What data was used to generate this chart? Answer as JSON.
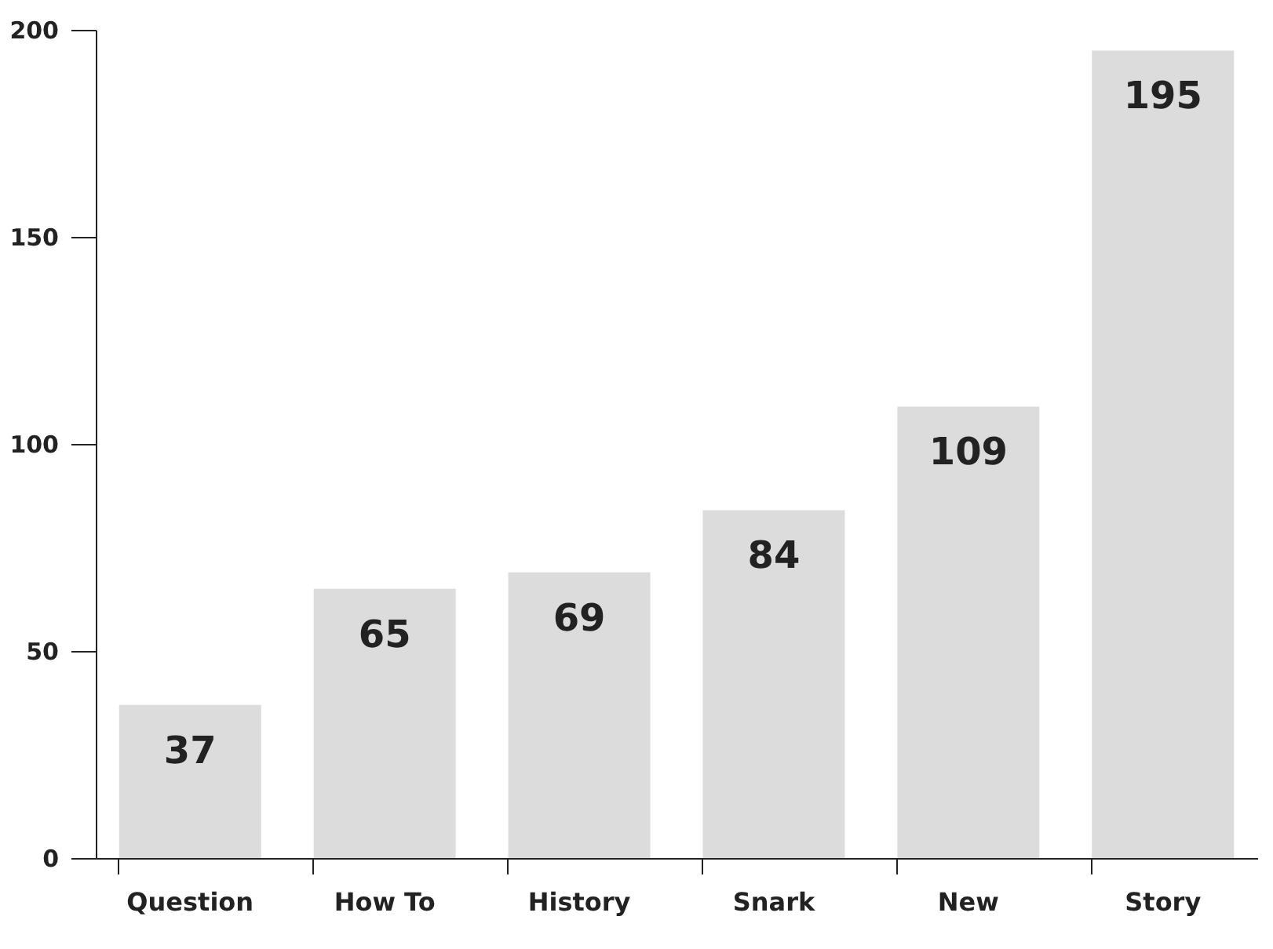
{
  "chart_data": {
    "type": "bar",
    "categories": [
      "Question",
      "How To",
      "History",
      "Snark",
      "New",
      "Story"
    ],
    "values": [
      37,
      65,
      69,
      84,
      109,
      195
    ],
    "color": "#dcdcdc",
    "ylim": [
      0,
      200
    ],
    "yticks": [
      0,
      50,
      100,
      150,
      200
    ],
    "data_labels": true,
    "grid": false
  }
}
